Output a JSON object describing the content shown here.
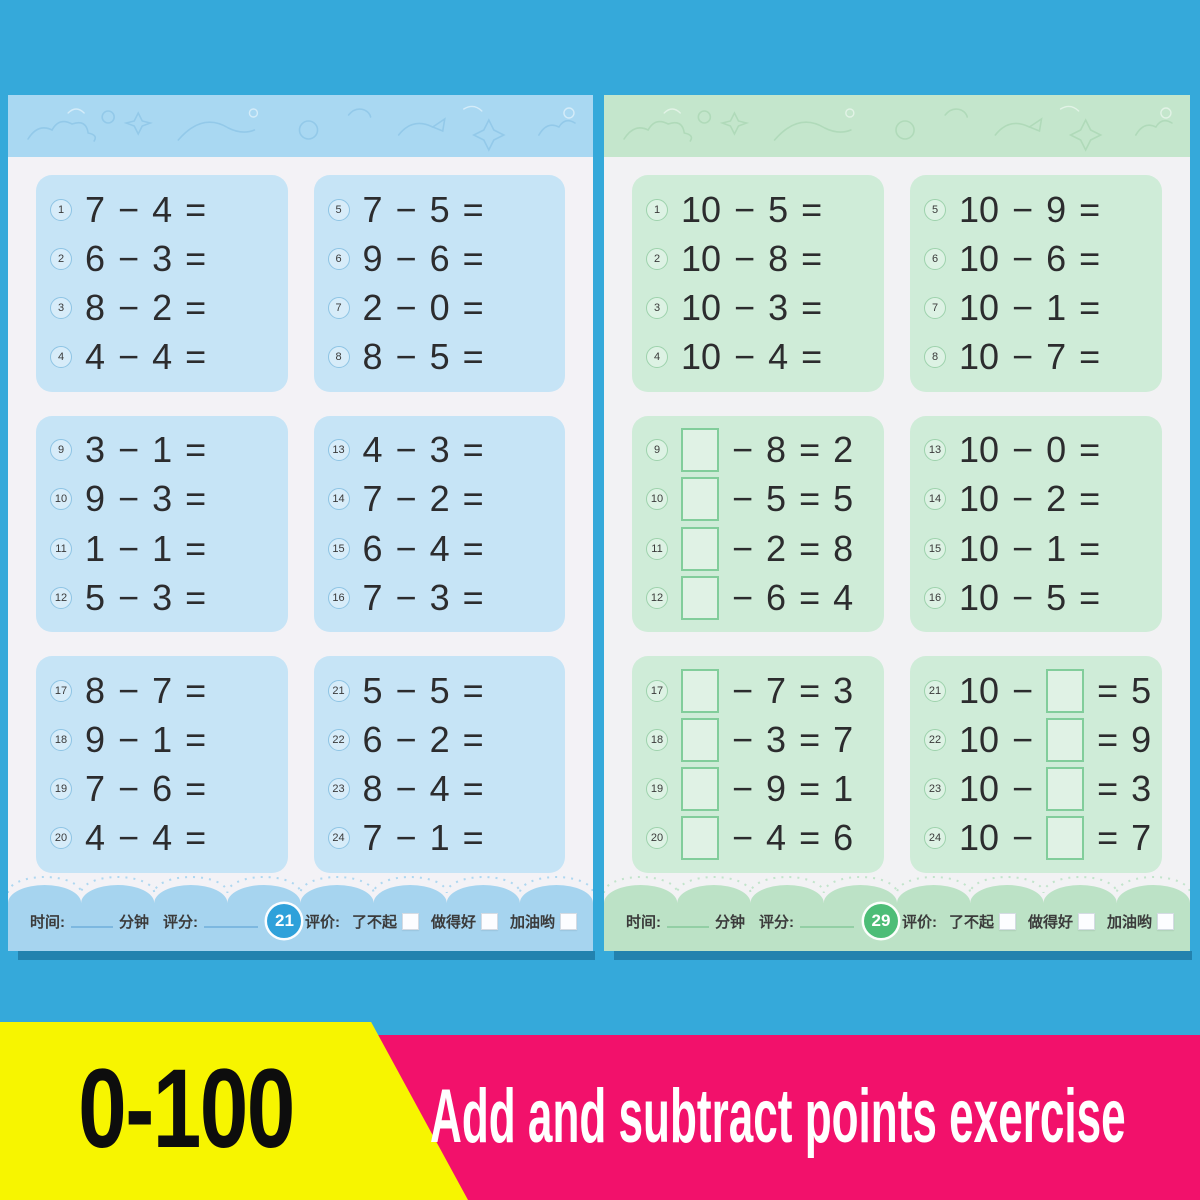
{
  "banner": {
    "range_label": "0-100",
    "title": "Add and subtract points exercise",
    "colors": {
      "background_blue": "#35a9da",
      "yellow": "#f7f500",
      "pink": "#f2116b",
      "range_text": "#0d0d0d",
      "title_text": "#ffffff"
    }
  },
  "pages": [
    {
      "side": "left",
      "theme": "blue",
      "badge": "21",
      "theme_colors": {
        "band": "#a9d8f2",
        "block": "#c6e4f6",
        "footer_band": "#a6d4ef",
        "badge_bg": "#2fa1da"
      },
      "footer": {
        "time_label": "时间:",
        "minutes_label": "分钟",
        "score_label": "评分:",
        "rating_label": "评价:",
        "ratings": [
          "了不起",
          "做得好",
          "加油哟"
        ]
      },
      "blocks": [
        {
          "problems": [
            {
              "n": "1",
              "expr": "7 − 4 ="
            },
            {
              "n": "2",
              "expr": "6 − 3 ="
            },
            {
              "n": "3",
              "expr": "8 − 2 ="
            },
            {
              "n": "4",
              "expr": "4 − 4 ="
            }
          ]
        },
        {
          "problems": [
            {
              "n": "5",
              "expr": "7 − 5 ="
            },
            {
              "n": "6",
              "expr": "9 − 6 ="
            },
            {
              "n": "7",
              "expr": "2 − 0 ="
            },
            {
              "n": "8",
              "expr": "8 − 5 ="
            }
          ]
        },
        {
          "problems": [
            {
              "n": "9",
              "expr": "3 − 1 ="
            },
            {
              "n": "10",
              "expr": "9 − 3 ="
            },
            {
              "n": "11",
              "expr": "1 − 1 ="
            },
            {
              "n": "12",
              "expr": "5 − 3 ="
            }
          ]
        },
        {
          "problems": [
            {
              "n": "13",
              "expr": "4 − 3 ="
            },
            {
              "n": "14",
              "expr": "7 − 2 ="
            },
            {
              "n": "15",
              "expr": "6 − 4 ="
            },
            {
              "n": "16",
              "expr": "7 − 3 ="
            }
          ]
        },
        {
          "problems": [
            {
              "n": "17",
              "expr": "8 − 7 ="
            },
            {
              "n": "18",
              "expr": "9 − 1 ="
            },
            {
              "n": "19",
              "expr": "7 − 6 ="
            },
            {
              "n": "20",
              "expr": "4 − 4 ="
            }
          ]
        },
        {
          "problems": [
            {
              "n": "21",
              "expr": "5 − 5 ="
            },
            {
              "n": "22",
              "expr": "6 − 2 ="
            },
            {
              "n": "23",
              "expr": "8 − 4 ="
            },
            {
              "n": "24",
              "expr": "7 − 1 ="
            }
          ]
        }
      ]
    },
    {
      "side": "right",
      "theme": "green",
      "badge": "29",
      "theme_colors": {
        "band": "#c4e6cc",
        "block": "#cfecd8",
        "footer_band": "#bce2c6",
        "badge_bg": "#4dbd77"
      },
      "footer": {
        "time_label": "时间:",
        "minutes_label": "分钟",
        "score_label": "评分:",
        "rating_label": "评价:",
        "ratings": [
          "了不起",
          "做得好",
          "加油哟"
        ]
      },
      "blocks": [
        {
          "problems": [
            {
              "n": "1",
              "expr": "10 − 5 ="
            },
            {
              "n": "2",
              "expr": "10 − 8 ="
            },
            {
              "n": "3",
              "expr": "10 − 3 ="
            },
            {
              "n": "4",
              "expr": "10 − 4 ="
            }
          ]
        },
        {
          "problems": [
            {
              "n": "5",
              "expr": "10 − 9 ="
            },
            {
              "n": "6",
              "expr": "10 − 6 ="
            },
            {
              "n": "7",
              "expr": "10 − 1 ="
            },
            {
              "n": "8",
              "expr": "10 − 7 ="
            }
          ]
        },
        {
          "problems": [
            {
              "n": "9",
              "expr": "□ − 8 = 2"
            },
            {
              "n": "10",
              "expr": "□ − 5 = 5"
            },
            {
              "n": "11",
              "expr": "□ − 2 = 8"
            },
            {
              "n": "12",
              "expr": "□ − 6 = 4"
            }
          ]
        },
        {
          "problems": [
            {
              "n": "13",
              "expr": "10 − 0 ="
            },
            {
              "n": "14",
              "expr": "10 − 2 ="
            },
            {
              "n": "15",
              "expr": "10 − 1 ="
            },
            {
              "n": "16",
              "expr": "10 − 5 ="
            }
          ]
        },
        {
          "problems": [
            {
              "n": "17",
              "expr": "□ − 7 = 3"
            },
            {
              "n": "18",
              "expr": "□ − 3 = 7"
            },
            {
              "n": "19",
              "expr": "□ − 9 = 1"
            },
            {
              "n": "20",
              "expr": "□ − 4 = 6"
            }
          ]
        },
        {
          "problems": [
            {
              "n": "21",
              "expr": "10 − □ = 5"
            },
            {
              "n": "22",
              "expr": "10 − □ = 9"
            },
            {
              "n": "23",
              "expr": "10 − □ = 3"
            },
            {
              "n": "24",
              "expr": "10 − □ = 7"
            }
          ]
        }
      ]
    }
  ]
}
